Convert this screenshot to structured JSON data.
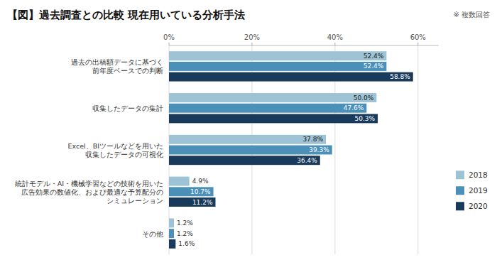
{
  "chart_data": {
    "type": "bar",
    "orientation": "horizontal",
    "title": "【図】過去調査との比較  現在用いている分析手法",
    "annotations": [
      "※ 複数回答"
    ],
    "categories": [
      "その他",
      "統計モデル・AI・機械学習などの技術を用いた\n広告効果の数値化、および最適な予算配分の\nシミュレーション",
      "Excel、BIツールなどを用いた\n収集したデータの可視化",
      "収集したデータの集計",
      "過去の出稿額データに基づく\n前年度ベースでの判断"
    ],
    "series": [
      {
        "name": "2018",
        "color": "#9dc3d4",
        "values": [
          1.2,
          4.9,
          37.8,
          50.0,
          52.4
        ],
        "value_labels": [
          "1.2%",
          "4.9%",
          "37.8%",
          "50.0%",
          "52.4%"
        ]
      },
      {
        "name": "2019",
        "color": "#4a90b8",
        "values": [
          1.2,
          10.7,
          39.3,
          47.6,
          52.4
        ],
        "value_labels": [
          "1.2%",
          "10.7%",
          "39.3%",
          "47.6%",
          "52.4%"
        ]
      },
      {
        "name": "2020",
        "color": "#1a3a5c",
        "values": [
          1.6,
          11.2,
          36.4,
          50.3,
          58.8
        ],
        "value_labels": [
          "1.6%",
          "11.2%",
          "36.4%",
          "50.3%",
          "58.8%"
        ]
      }
    ],
    "xlim": [
      0,
      65
    ],
    "xticks": [
      {
        "value": 0,
        "label": "0%"
      },
      {
        "value": 20,
        "label": "20%"
      },
      {
        "value": 40,
        "label": "40%"
      },
      {
        "value": 60,
        "label": "60%"
      }
    ],
    "grid": true,
    "legend": "right",
    "data_labels": true
  }
}
